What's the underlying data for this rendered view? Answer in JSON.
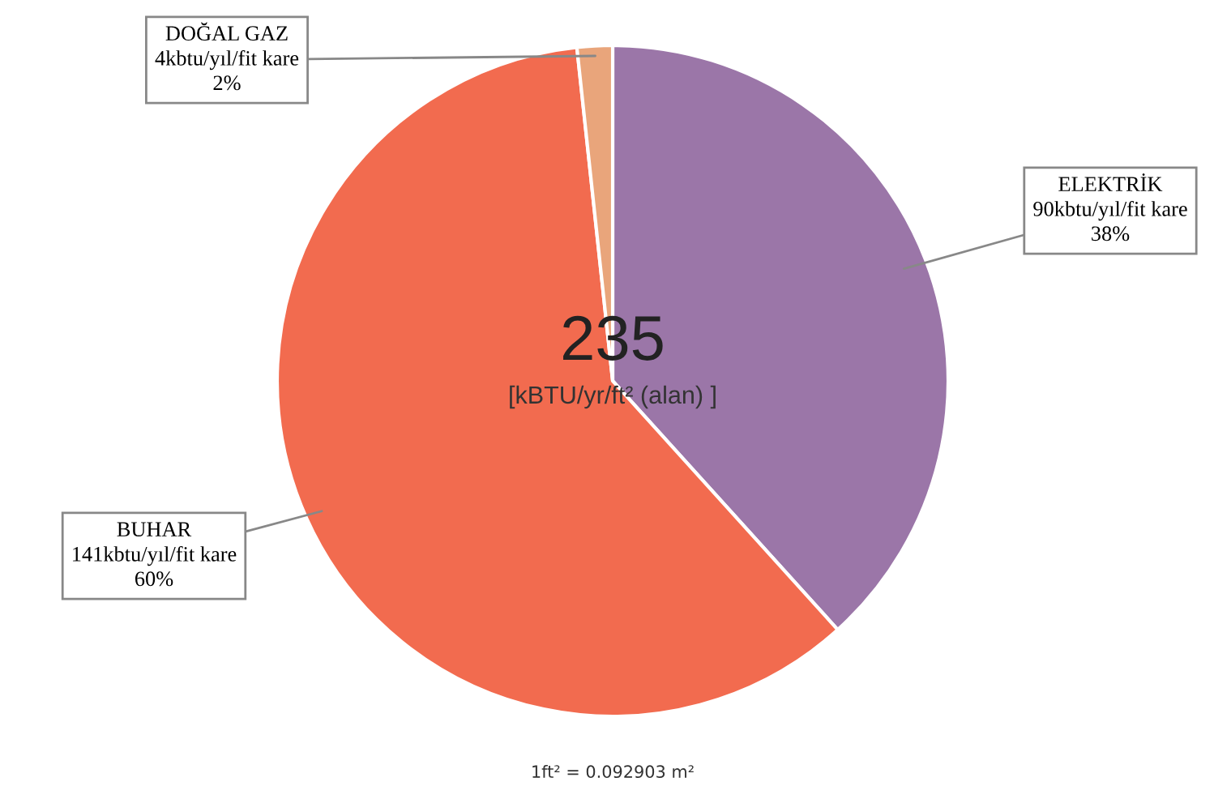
{
  "chart_data": {
    "type": "pie",
    "categories": [
      "ELEKTRİK",
      "BUHAR",
      "DOĞAL GAZ"
    ],
    "values": [
      90,
      141,
      4
    ],
    "colors": [
      "#9b76a8",
      "#f26b4f",
      "#e9a57b"
    ],
    "value_labels": [
      "90kbtu/yıl/fit kare\n38%",
      "141kbtu/yıl/fit kare\n60%",
      "4kbtu/yıl/fit kare\n2%"
    ],
    "annotations": [
      "235",
      "[kBTU/yr/ft² (alan) ]",
      "1ft² = 0.092903 m²"
    ]
  }
}
